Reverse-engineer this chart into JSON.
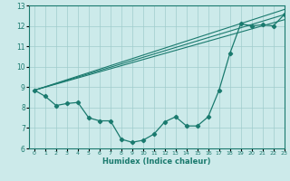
{
  "xlabel": "Humidex (Indice chaleur)",
  "ylabel": "",
  "bg_color": "#cceaea",
  "line_color": "#1a7a6e",
  "grid_color": "#a0cccc",
  "xlim": [
    -0.5,
    23
  ],
  "ylim": [
    6,
    13
  ],
  "yticks": [
    6,
    7,
    8,
    9,
    10,
    11,
    12,
    13
  ],
  "xticks": [
    0,
    1,
    2,
    3,
    4,
    5,
    6,
    7,
    8,
    9,
    10,
    11,
    12,
    13,
    14,
    15,
    16,
    17,
    18,
    19,
    20,
    21,
    22,
    23
  ],
  "series1": [
    [
      0,
      8.85
    ],
    [
      1,
      8.55
    ],
    [
      2,
      8.1
    ],
    [
      3,
      8.2
    ],
    [
      4,
      8.25
    ],
    [
      5,
      7.5
    ],
    [
      6,
      7.35
    ],
    [
      7,
      7.35
    ],
    [
      8,
      6.45
    ],
    [
      9,
      6.3
    ],
    [
      10,
      6.4
    ],
    [
      11,
      6.7
    ],
    [
      12,
      7.3
    ],
    [
      13,
      7.55
    ],
    [
      14,
      7.1
    ],
    [
      15,
      7.1
    ],
    [
      16,
      7.55
    ],
    [
      17,
      8.85
    ],
    [
      18,
      10.65
    ],
    [
      19,
      12.1
    ],
    [
      20,
      12.0
    ],
    [
      21,
      12.05
    ],
    [
      22,
      12.0
    ],
    [
      23,
      12.55
    ]
  ],
  "trend_lines": [
    [
      [
        0,
        8.85
      ],
      [
        23,
        12.3
      ]
    ],
    [
      [
        0,
        8.85
      ],
      [
        23,
        12.55
      ]
    ],
    [
      [
        0,
        8.85
      ],
      [
        23,
        12.8
      ]
    ]
  ]
}
